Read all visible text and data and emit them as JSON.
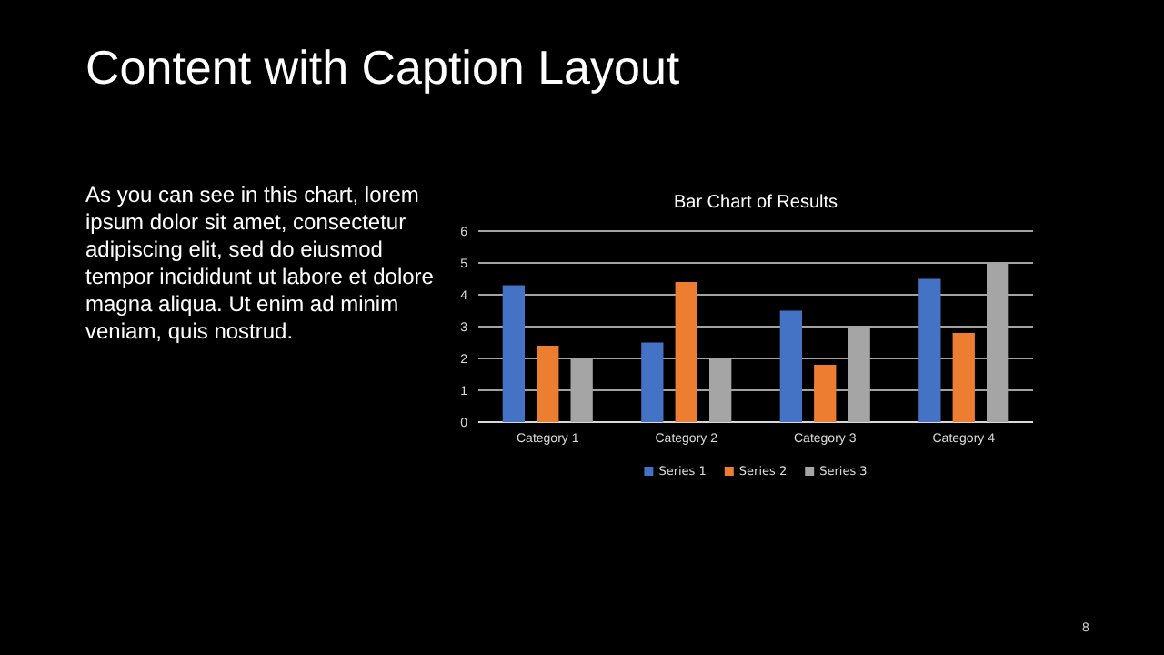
{
  "chart_data": {
    "type": "bar",
    "title": "Bar Chart of Results",
    "annotations": [
      "Content with Caption Layout",
      "As you can see in this chart, lorem ipsum dolor sit amet, consectetur adipiscing elit, sed do eiusmod tempor incididunt ut labore et dolore magna aliqua. Ut enim ad minim veniam, quis nostrud.",
      "8"
    ],
    "categories": [
      "Category 1",
      "Category 2",
      "Category 3",
      "Category 4"
    ],
    "series": [
      {
        "name": "Series 1",
        "color": "#4472c4",
        "values": [
          4.3,
          2.5,
          3.5,
          4.5
        ]
      },
      {
        "name": "Series 2",
        "color": "#ed7d31",
        "values": [
          2.4,
          4.4,
          1.8,
          2.8
        ]
      },
      {
        "name": "Series 3",
        "color": "#a5a5a5",
        "values": [
          2,
          2,
          3,
          5
        ]
      }
    ],
    "ylim": [
      0,
      6
    ],
    "yticks": [
      0,
      1,
      2,
      3,
      4,
      5,
      6
    ],
    "grid": "y",
    "legend": "bottom"
  }
}
